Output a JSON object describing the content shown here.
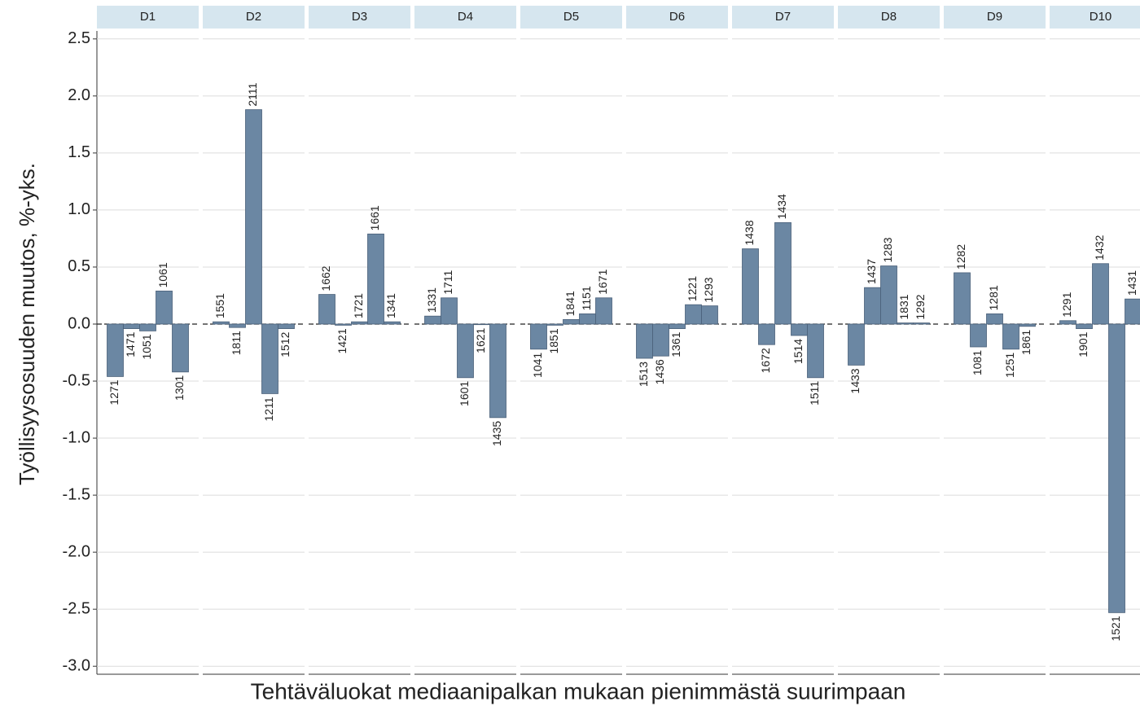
{
  "chart_data": {
    "type": "bar",
    "ylabel": "Työllisyysosuuden muutos, %-yks.",
    "xlabel": "Tehtäväluokat mediaanipalkan mukaan pienimmästä suurimpaan",
    "color": "#6b87a3",
    "grid": true,
    "ylim": [
      -3.07,
      2.57
    ],
    "yticks": [
      2.5,
      {
        "value": 2,
        "label": "2.0"
      },
      1.5,
      {
        "value": 1,
        "label": "1.0"
      },
      0.5,
      {
        "value": 0,
        "label": "0.0"
      },
      -0.5,
      {
        "value": -1,
        "label": "-1.0"
      },
      -1.5,
      {
        "value": -2,
        "label": "-2.0"
      },
      -2.5,
      {
        "value": -3,
        "label": "-3.0"
      }
    ],
    "facets": [
      {
        "name": "D1",
        "categories": [
          "1271",
          "1471",
          "1051",
          "1061",
          "1301"
        ],
        "values": [
          -0.46,
          -0.04,
          -0.06,
          0.29,
          -0.42
        ]
      },
      {
        "name": "D2",
        "categories": [
          "1551",
          "1811",
          "2111",
          "1211",
          "1512"
        ],
        "values": [
          0.02,
          -0.03,
          1.88,
          -0.61,
          -0.04
        ]
      },
      {
        "name": "D3",
        "categories": [
          "1662",
          "1421",
          "1721",
          "1661",
          "1341"
        ],
        "values": [
          0.26,
          -0.01,
          0.02,
          0.79,
          0.02
        ]
      },
      {
        "name": "D4",
        "categories": [
          "1331",
          "1711",
          "1601",
          "1621",
          "1435"
        ],
        "values": [
          0.07,
          0.23,
          -0.47,
          -0.005,
          -0.82
        ]
      },
      {
        "name": "D5",
        "categories": [
          "1041",
          "1851",
          "1841",
          "1151",
          "1671"
        ],
        "values": [
          -0.22,
          -0.01,
          0.04,
          0.09,
          0.23
        ]
      },
      {
        "name": "D6",
        "categories": [
          "1513",
          "1436",
          "1361",
          "1221",
          "1293"
        ],
        "values": [
          -0.3,
          -0.28,
          -0.04,
          0.17,
          0.16
        ]
      },
      {
        "name": "D7",
        "categories": [
          "1438",
          "1672",
          "1434",
          "1514",
          "1511"
        ],
        "values": [
          0.66,
          -0.18,
          0.89,
          -0.1,
          -0.47
        ]
      },
      {
        "name": "D8",
        "categories": [
          "1433",
          "1437",
          "1283",
          "1831",
          "1292"
        ],
        "values": [
          -0.36,
          0.32,
          0.51,
          0.01,
          0.01
        ]
      },
      {
        "name": "D9",
        "categories": [
          "1282",
          "1081",
          "1281",
          "1251",
          "1861"
        ],
        "values": [
          0.45,
          -0.2,
          0.09,
          -0.22,
          -0.02
        ]
      },
      {
        "name": "D10",
        "categories": [
          "1291",
          "1901",
          "1432",
          "1521",
          "1431"
        ],
        "values": [
          0.03,
          -0.04,
          0.53,
          -2.53,
          0.22
        ]
      }
    ]
  }
}
